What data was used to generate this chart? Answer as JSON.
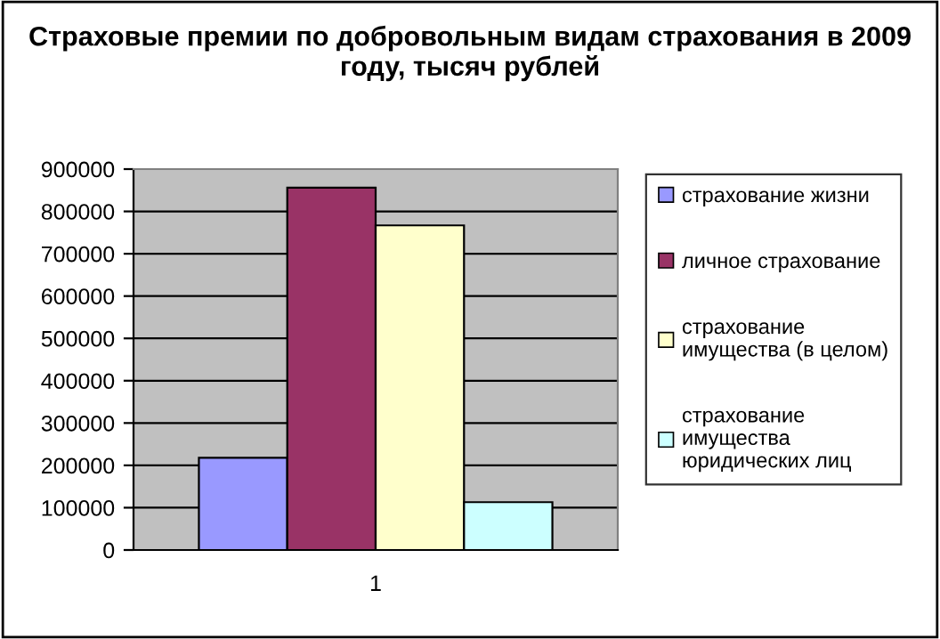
{
  "chart_data": {
    "type": "bar",
    "title": "Страховые премии по добровольным видам страхования в 2009 году, тысяч рублей",
    "categories": [
      "1"
    ],
    "series": [
      {
        "name": "страхование жизни",
        "color": "#9999ff",
        "values": [
          218000
        ]
      },
      {
        "name": "личное страхование",
        "color": "#993366",
        "values": [
          856000
        ]
      },
      {
        "name": "страхование имущества (в целом)",
        "color": "#ffffcc",
        "values": [
          767000
        ]
      },
      {
        "name": "страхование имущества юридических лиц",
        "color": "#ccffff",
        "values": [
          113000
        ]
      }
    ],
    "ylim": [
      0,
      900000
    ],
    "yticks": [
      0,
      100000,
      200000,
      300000,
      400000,
      500000,
      600000,
      700000,
      800000,
      900000
    ],
    "grid": "y",
    "legend": "right"
  }
}
